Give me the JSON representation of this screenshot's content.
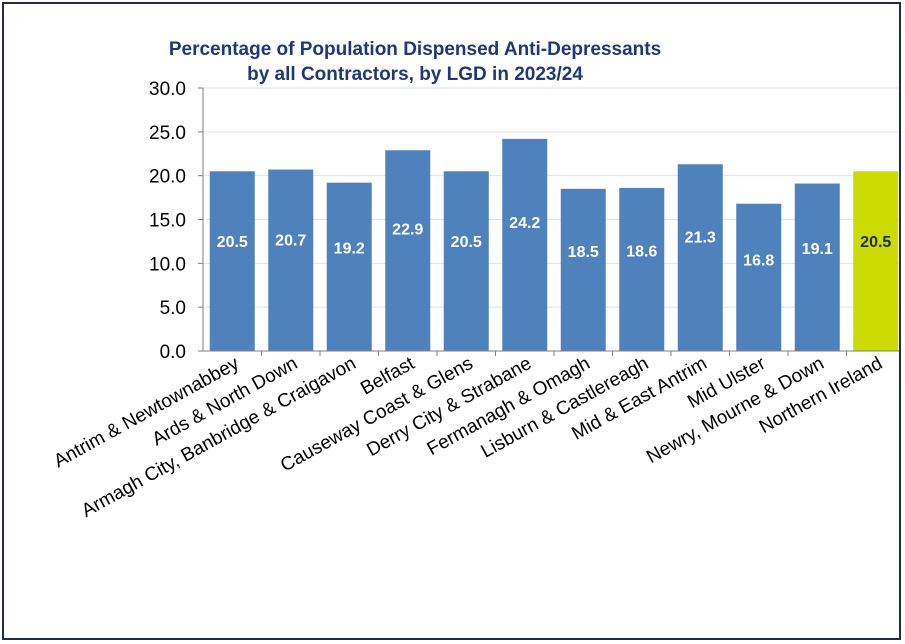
{
  "chart_data": {
    "type": "bar",
    "title_lines": [
      "Percentage of Population Dispensed Anti-Depressants",
      "by all Contractors, by LGD in 2023/24"
    ],
    "xlabel": "",
    "ylabel": "",
    "ylim": [
      0,
      30
    ],
    "yticks": [
      "0.0",
      "5.0",
      "10.0",
      "15.0",
      "20.0",
      "25.0",
      "30.0"
    ],
    "grid": true,
    "legend": "none",
    "categories": [
      "Antrim & Newtownabbey",
      "Ards & North Down",
      "Armagh City, Banbridge & Craigavon",
      "Belfast",
      "Causeway Coast & Glens",
      "Derry City & Strabane",
      "Fermanagh & Omagh",
      "Lisburn & Castlereagh",
      "Mid & East Antrim",
      "Mid Ulster",
      "Newry, Mourne & Down",
      "Northern Ireland"
    ],
    "values": [
      20.5,
      20.7,
      19.2,
      22.9,
      20.5,
      24.2,
      18.5,
      18.6,
      21.3,
      16.8,
      19.1,
      20.5
    ],
    "data_labels": [
      "20.5",
      "20.7",
      "19.2",
      "22.9",
      "20.5",
      "24.2",
      "18.5",
      "18.6",
      "21.3",
      "16.8",
      "19.1",
      "20.5"
    ],
    "colors": {
      "bar": "#4f81bd",
      "highlight_bar": "#ccdb00",
      "label_on_bar": "#ffffff",
      "label_on_highlight": "#1f2c4a",
      "title": "#1f3877",
      "grid": "#dde3ee",
      "axis": "#7f7f7f"
    },
    "highlight_index": 11
  }
}
